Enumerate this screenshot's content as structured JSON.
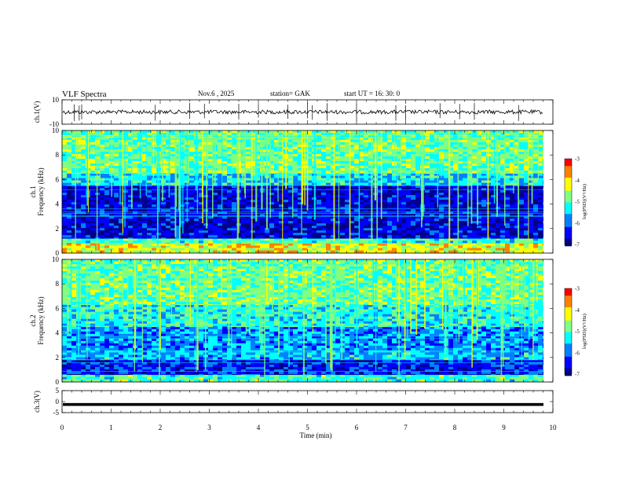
{
  "header": {
    "title": "VLF  Spectra",
    "date": "Nov.6   , 2025",
    "station": "station= GAK",
    "start": "start  UT  =    16: 30: 0"
  },
  "colors": {
    "colormap": [
      "#00008b",
      "#0000ff",
      "#0080ff",
      "#00ffff",
      "#80ff80",
      "#ffff00",
      "#ff8000",
      "#ff0000",
      "#ffffff"
    ]
  },
  "chart_data": [
    {
      "type": "line",
      "name": "ch1-waveform",
      "ylabel": "ch.1(V)",
      "ylim": [
        -10,
        10
      ],
      "yticks": [
        "10",
        "-10"
      ],
      "xlim": [
        0,
        10
      ],
      "baseline": 0,
      "spikes_min": [
        0.25,
        0.35,
        0.4,
        1.9,
        2.6,
        2.9,
        3.6,
        4.0,
        4.6,
        5.0,
        5.1,
        5.4,
        6.0,
        6.8,
        7.0,
        7.7,
        8.1,
        8.4,
        9.3
      ]
    },
    {
      "type": "heatmap",
      "name": "ch1-spectrogram",
      "ylabel": "ch.1",
      "ylabel2": "Frequency  (kHz)",
      "ylim": [
        0,
        10
      ],
      "yticks": [
        "0",
        "2",
        "4",
        "6",
        "8",
        "10"
      ],
      "xlim": [
        0,
        10
      ],
      "colorbar": {
        "label": "log(PSD)(V²/Hz)",
        "range": [
          -7,
          -3
        ],
        "ticks": [
          "-3",
          "-4",
          "-5",
          "-6",
          "-7"
        ]
      },
      "bands": [
        {
          "from": 0,
          "to": 0.8,
          "level": -4.2
        },
        {
          "from": 0.8,
          "to": 1.2,
          "level": -5.0
        },
        {
          "from": 1.2,
          "to": 5.5,
          "level": -6.6
        },
        {
          "from": 5.5,
          "to": 6.5,
          "level": -5.4
        },
        {
          "from": 6.5,
          "to": 10,
          "level": -4.8
        }
      ]
    },
    {
      "type": "heatmap",
      "name": "ch2-spectrogram",
      "ylabel": "ch.2",
      "ylabel2": "Frequency  (kHz)",
      "ylim": [
        0,
        10
      ],
      "yticks": [
        "0",
        "2",
        "4",
        "6",
        "8",
        "10"
      ],
      "xlim": [
        0,
        10
      ],
      "colorbar": {
        "label": "log(PSD)(V²/Hz)",
        "range": [
          -7,
          -3
        ],
        "ticks": [
          "-3",
          "-4",
          "-5",
          "-6",
          "-7"
        ]
      },
      "bands": [
        {
          "from": 0,
          "to": 0.6,
          "level": -5.0
        },
        {
          "from": 0.6,
          "to": 1.8,
          "level": -6.4
        },
        {
          "from": 1.8,
          "to": 2.6,
          "level": -5.6
        },
        {
          "from": 2.6,
          "to": 4.5,
          "level": -5.8
        },
        {
          "from": 4.5,
          "to": 6.3,
          "level": -5.2
        },
        {
          "from": 6.3,
          "to": 10,
          "level": -4.8
        }
      ]
    },
    {
      "type": "line",
      "name": "ch3-waveform",
      "ylabel": "ch.3(V)",
      "ylim": [
        -5,
        5
      ],
      "yticks": [
        "5",
        "0",
        "-5"
      ],
      "xlim": [
        0,
        10
      ],
      "baseline": -1.3
    }
  ],
  "xaxis": {
    "label": "Time  (min)",
    "ticks": [
      "0",
      "1",
      "2",
      "3",
      "4",
      "5",
      "6",
      "7",
      "8",
      "9",
      "10"
    ]
  }
}
